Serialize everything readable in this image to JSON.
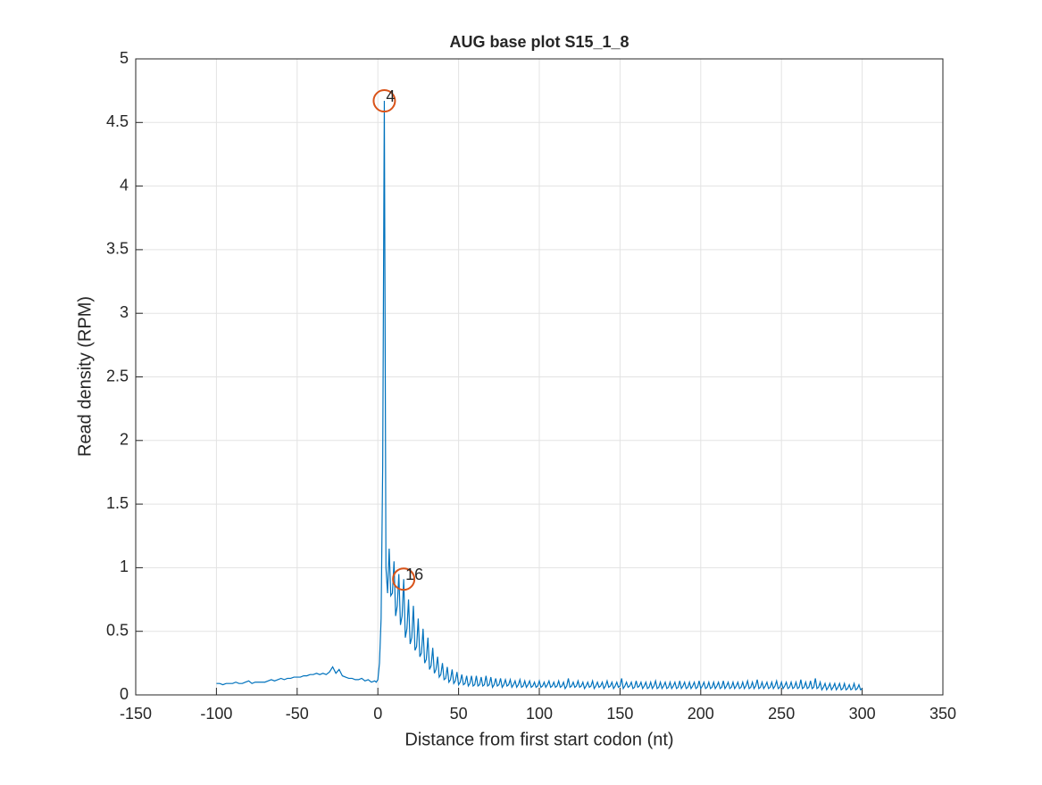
{
  "chart_data": {
    "type": "line",
    "title": "AUG base plot S15_1_8",
    "x_label": "Distance from first start codon (nt)",
    "y_label": "Read density (RPM)",
    "color": "#0072bd",
    "grid": true,
    "xlim": [
      -150,
      350
    ],
    "ylim": [
      0,
      5
    ],
    "xticks": [
      -150,
      -100,
      -50,
      0,
      50,
      100,
      150,
      200,
      250,
      300,
      350
    ],
    "yticks": [
      0,
      0.5,
      1,
      1.5,
      2,
      2.5,
      3,
      3.5,
      4,
      4.5,
      5
    ],
    "x": [
      -100,
      -98,
      -96,
      -94,
      -92,
      -90,
      -88,
      -86,
      -84,
      -82,
      -80,
      -78,
      -76,
      -74,
      -72,
      -70,
      -68,
      -66,
      -64,
      -62,
      -60,
      -58,
      -56,
      -54,
      -52,
      -50,
      -48,
      -46,
      -44,
      -42,
      -40,
      -38,
      -36,
      -34,
      -32,
      -30,
      -28,
      -26,
      -24,
      -22,
      -20,
      -18,
      -16,
      -14,
      -12,
      -10,
      -8,
      -6,
      -4,
      -2,
      -1,
      0,
      1,
      2,
      3,
      4,
      5,
      6,
      7,
      8,
      9,
      10,
      11,
      12,
      13,
      14,
      15,
      16,
      17,
      18,
      19,
      20,
      21,
      22,
      23,
      24,
      25,
      26,
      27,
      28,
      29,
      30,
      31,
      32,
      33,
      34,
      35,
      36,
      37,
      38,
      39,
      40,
      41,
      42,
      43,
      44,
      45,
      46,
      47,
      48,
      49,
      50,
      51,
      52,
      53,
      54,
      55,
      56,
      57,
      58,
      59,
      60,
      61,
      62,
      63,
      64,
      65,
      66,
      67,
      68,
      69,
      70,
      71,
      72,
      73,
      74,
      75,
      76,
      77,
      78,
      79,
      80,
      81,
      82,
      83,
      84,
      85,
      86,
      87,
      88,
      89,
      90,
      91,
      92,
      93,
      94,
      95,
      96,
      97,
      98,
      99,
      100,
      101,
      102,
      103,
      104,
      105,
      106,
      107,
      108,
      109,
      110,
      111,
      112,
      113,
      114,
      115,
      116,
      117,
      118,
      119,
      120,
      121,
      122,
      123,
      124,
      125,
      126,
      127,
      128,
      129,
      130,
      131,
      132,
      133,
      134,
      135,
      136,
      137,
      138,
      139,
      140,
      141,
      142,
      143,
      144,
      145,
      146,
      147,
      148,
      149,
      150,
      151,
      152,
      153,
      154,
      155,
      156,
      157,
      158,
      159,
      160,
      161,
      162,
      163,
      164,
      165,
      166,
      167,
      168,
      169,
      170,
      171,
      172,
      173,
      174,
      175,
      176,
      177,
      178,
      179,
      180,
      181,
      182,
      183,
      184,
      185,
      186,
      187,
      188,
      189,
      190,
      191,
      192,
      193,
      194,
      195,
      196,
      197,
      198,
      199,
      200,
      201,
      202,
      203,
      204,
      205,
      206,
      207,
      208,
      209,
      210,
      211,
      212,
      213,
      214,
      215,
      216,
      217,
      218,
      219,
      220,
      221,
      222,
      223,
      224,
      225,
      226,
      227,
      228,
      229,
      230,
      231,
      232,
      233,
      234,
      235,
      236,
      237,
      238,
      239,
      240,
      241,
      242,
      243,
      244,
      245,
      246,
      247,
      248,
      249,
      250,
      251,
      252,
      253,
      254,
      255,
      256,
      257,
      258,
      259,
      260,
      261,
      262,
      263,
      264,
      265,
      266,
      267,
      268,
      269,
      270,
      271,
      272,
      273,
      274,
      275,
      276,
      277,
      278,
      279,
      280,
      281,
      282,
      283,
      284,
      285,
      286,
      287,
      288,
      289,
      290,
      291,
      292,
      293,
      294,
      295,
      296,
      297,
      298,
      299,
      300
    ],
    "values": [
      0.09,
      0.09,
      0.08,
      0.09,
      0.09,
      0.09,
      0.1,
      0.09,
      0.09,
      0.1,
      0.11,
      0.09,
      0.1,
      0.1,
      0.1,
      0.1,
      0.11,
      0.12,
      0.11,
      0.12,
      0.13,
      0.12,
      0.13,
      0.13,
      0.14,
      0.14,
      0.14,
      0.15,
      0.15,
      0.16,
      0.16,
      0.17,
      0.16,
      0.17,
      0.16,
      0.18,
      0.22,
      0.17,
      0.2,
      0.15,
      0.14,
      0.13,
      0.13,
      0.12,
      0.12,
      0.13,
      0.11,
      0.12,
      0.1,
      0.11,
      0.1,
      0.12,
      0.25,
      0.6,
      1.8,
      4.67,
      1.0,
      0.8,
      1.15,
      0.78,
      0.8,
      1.05,
      0.62,
      0.7,
      0.95,
      0.55,
      0.62,
      0.91,
      0.45,
      0.52,
      0.75,
      0.4,
      0.45,
      0.7,
      0.35,
      0.38,
      0.6,
      0.3,
      0.33,
      0.52,
      0.25,
      0.28,
      0.45,
      0.2,
      0.23,
      0.37,
      0.17,
      0.2,
      0.3,
      0.14,
      0.16,
      0.25,
      0.12,
      0.13,
      0.22,
      0.1,
      0.12,
      0.2,
      0.09,
      0.11,
      0.18,
      0.08,
      0.1,
      0.16,
      0.08,
      0.09,
      0.15,
      0.07,
      0.09,
      0.15,
      0.07,
      0.08,
      0.15,
      0.07,
      0.08,
      0.14,
      0.07,
      0.08,
      0.15,
      0.07,
      0.08,
      0.14,
      0.06,
      0.08,
      0.13,
      0.07,
      0.08,
      0.13,
      0.06,
      0.08,
      0.12,
      0.07,
      0.08,
      0.12,
      0.06,
      0.08,
      0.11,
      0.06,
      0.08,
      0.12,
      0.06,
      0.07,
      0.11,
      0.06,
      0.08,
      0.11,
      0.06,
      0.07,
      0.1,
      0.06,
      0.07,
      0.11,
      0.06,
      0.07,
      0.1,
      0.06,
      0.08,
      0.11,
      0.06,
      0.07,
      0.1,
      0.06,
      0.07,
      0.11,
      0.06,
      0.07,
      0.1,
      0.05,
      0.07,
      0.13,
      0.06,
      0.07,
      0.1,
      0.06,
      0.07,
      0.11,
      0.06,
      0.07,
      0.1,
      0.05,
      0.07,
      0.1,
      0.06,
      0.07,
      0.11,
      0.05,
      0.07,
      0.1,
      0.06,
      0.07,
      0.1,
      0.05,
      0.07,
      0.11,
      0.06,
      0.07,
      0.1,
      0.05,
      0.07,
      0.1,
      0.06,
      0.07,
      0.13,
      0.05,
      0.07,
      0.1,
      0.06,
      0.07,
      0.1,
      0.05,
      0.06,
      0.11,
      0.06,
      0.07,
      0.1,
      0.05,
      0.07,
      0.1,
      0.05,
      0.06,
      0.1,
      0.05,
      0.07,
      0.11,
      0.05,
      0.06,
      0.1,
      0.05,
      0.07,
      0.1,
      0.05,
      0.06,
      0.1,
      0.05,
      0.07,
      0.1,
      0.05,
      0.06,
      0.11,
      0.05,
      0.07,
      0.1,
      0.05,
      0.06,
      0.1,
      0.05,
      0.07,
      0.1,
      0.05,
      0.06,
      0.11,
      0.05,
      0.07,
      0.1,
      0.05,
      0.06,
      0.1,
      0.05,
      0.06,
      0.1,
      0.05,
      0.07,
      0.1,
      0.05,
      0.06,
      0.11,
      0.05,
      0.07,
      0.1,
      0.05,
      0.06,
      0.1,
      0.05,
      0.07,
      0.1,
      0.05,
      0.06,
      0.1,
      0.05,
      0.07,
      0.11,
      0.05,
      0.06,
      0.1,
      0.05,
      0.07,
      0.12,
      0.05,
      0.06,
      0.1,
      0.05,
      0.07,
      0.1,
      0.05,
      0.06,
      0.1,
      0.05,
      0.07,
      0.11,
      0.05,
      0.06,
      0.1,
      0.05,
      0.07,
      0.1,
      0.05,
      0.06,
      0.1,
      0.05,
      0.06,
      0.1,
      0.05,
      0.06,
      0.12,
      0.05,
      0.06,
      0.1,
      0.05,
      0.06,
      0.11,
      0.05,
      0.06,
      0.13,
      0.05,
      0.06,
      0.1,
      0.04,
      0.06,
      0.09,
      0.04,
      0.06,
      0.09,
      0.04,
      0.06,
      0.09,
      0.04,
      0.06,
      0.09,
      0.04,
      0.05,
      0.09,
      0.04,
      0.05,
      0.08,
      0.04,
      0.05,
      0.09,
      0.04,
      0.05,
      0.08,
      0.04,
      0.05
    ],
    "annotations": [
      {
        "x": 4,
        "y": 4.67,
        "label": "4",
        "color": "#d95319"
      },
      {
        "x": 16,
        "y": 0.91,
        "label": "16",
        "color": "#d95319"
      }
    ]
  }
}
